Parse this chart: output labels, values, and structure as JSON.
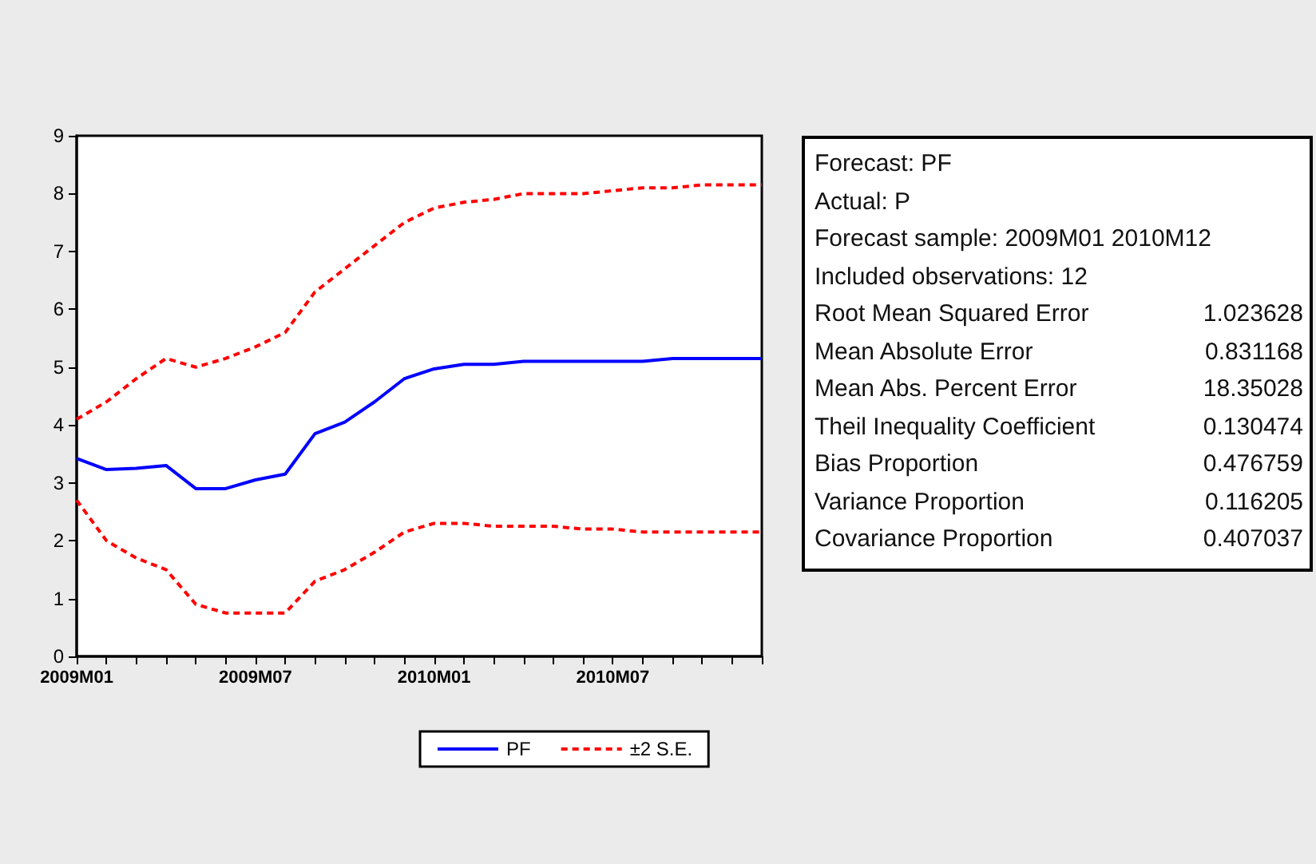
{
  "chart_data": [
    {
      "type": "line",
      "categories": [
        "2009M01",
        null,
        null,
        null,
        null,
        null,
        "2009M07",
        null,
        null,
        null,
        null,
        null,
        "2010M01",
        null,
        null,
        null,
        null,
        null,
        "2010M07",
        null,
        null,
        null,
        null,
        null
      ],
      "series": [
        {
          "name": "PF",
          "color": "#0000ff",
          "line_style": "solid",
          "values": [
            3.42,
            3.23,
            3.25,
            3.3,
            2.9,
            2.9,
            3.05,
            3.15,
            3.85,
            4.05,
            4.4,
            4.8,
            4.97,
            5.05,
            5.05,
            5.1,
            5.1,
            5.1,
            5.1,
            5.1,
            5.15,
            5.15,
            5.15,
            5.15
          ]
        },
        {
          "name": "±2 S.E.",
          "color": "#ff0000",
          "line_style": "dashed",
          "values": [
            4.1,
            4.4,
            4.8,
            5.15,
            5.0,
            5.15,
            5.35,
            5.6,
            6.3,
            6.7,
            7.1,
            7.5,
            7.75,
            7.85,
            7.9,
            8.0,
            8.0,
            8.0,
            8.05,
            8.1,
            8.1,
            8.15,
            8.15,
            8.15
          ]
        },
        {
          "color": "#ff0000",
          "line_style": "dashed",
          "values": [
            2.7,
            2.0,
            1.7,
            1.5,
            0.9,
            0.75,
            0.75,
            0.75,
            1.3,
            1.5,
            1.8,
            2.15,
            2.3,
            2.3,
            2.25,
            2.25,
            2.25,
            2.2,
            2.2,
            2.15,
            2.15,
            2.15,
            2.15,
            2.15
          ]
        }
      ],
      "ylim": [
        0,
        9
      ],
      "yticks": [
        0,
        1,
        2,
        3,
        4,
        5,
        6,
        7,
        8,
        9
      ],
      "grid": false,
      "legend": "bottom",
      "marker": "none"
    },
    {
      "type": "other",
      "annotations": [
        "Forecast: PF",
        "Actual: P",
        "Forecast sample: 2009M01 2010M12",
        "Included observations: 12"
      ],
      "categories": [
        "Root Mean Squared Error",
        "Mean Absolute Error",
        "Mean Abs. Percent Error",
        "Theil Inequality Coefficient",
        "Bias Proportion",
        "Variance Proportion",
        "Covariance Proportion"
      ],
      "values": [
        1.023628,
        0.831168,
        18.35028,
        0.130474,
        0.476759,
        0.116205,
        0.407037
      ],
      "data_labels": true
    }
  ]
}
